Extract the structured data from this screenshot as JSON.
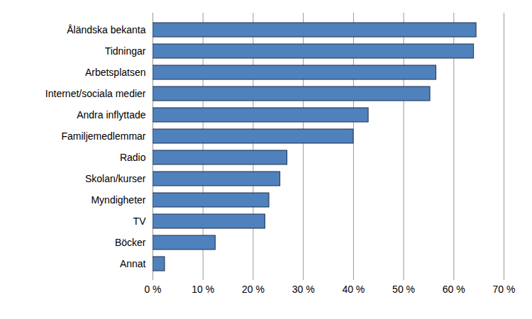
{
  "chart_data": {
    "type": "bar",
    "orientation": "horizontal",
    "categories": [
      "Åländska bekanta",
      "Tidningar",
      "Arbetsplatsen",
      "Internet/sociala medier",
      "Andra inflyttade",
      "Familjemedlemmar",
      "Radio",
      "Skolan/kurser",
      "Myndigheter",
      "TV",
      "Böcker",
      "Annat"
    ],
    "values": [
      64.5,
      64,
      56.5,
      55.3,
      43,
      40,
      26.8,
      25.4,
      23.2,
      22.4,
      12.5,
      2.4
    ],
    "color": "#4f81bd",
    "xlim": [
      0,
      70
    ],
    "xticks": [
      {
        "value": 0,
        "label": "0 %"
      },
      {
        "value": 10,
        "label": "10 %"
      },
      {
        "value": 20,
        "label": "20 %"
      },
      {
        "value": 30,
        "label": "30 %"
      },
      {
        "value": 40,
        "label": "40 %"
      },
      {
        "value": 50,
        "label": "50 %"
      },
      {
        "value": 60,
        "label": "60 %"
      },
      {
        "value": 70,
        "label": "70 %"
      }
    ],
    "grid": true
  }
}
